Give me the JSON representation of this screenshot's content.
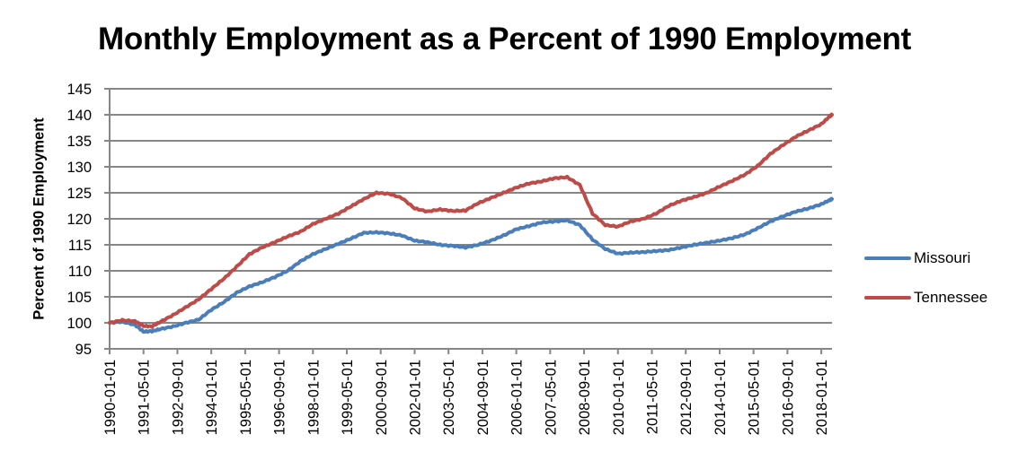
{
  "chart_data": {
    "type": "line",
    "title": "Monthly Employment as a Percent of 1990 Employment",
    "xlabel": "",
    "ylabel": "Percent of 1990 Employment",
    "ylim": [
      95,
      145
    ],
    "yticks": [
      95,
      100,
      105,
      110,
      115,
      120,
      125,
      130,
      135,
      140,
      145
    ],
    "grid": true,
    "legend_position": "right",
    "x_tick_labels": [
      "1990-01-01",
      "1991-05-01",
      "1992-09-01",
      "1994-01-01",
      "1995-05-01",
      "1996-09-01",
      "1998-01-01",
      "1999-05-01",
      "2000-09-01",
      "2002-01-01",
      "2003-05-01",
      "2004-09-01",
      "2006-01-01",
      "2007-05-01",
      "2008-09-01",
      "2010-01-01",
      "2011-05-01",
      "2012-09-01",
      "2014-01-01",
      "2015-05-01",
      "2016-09-01",
      "2018-01-01"
    ],
    "x": [
      1990.0,
      1990.5,
      1991.0,
      1991.33,
      1991.67,
      1992.0,
      1992.5,
      1993.0,
      1993.5,
      1994.0,
      1994.5,
      1995.0,
      1995.5,
      1996.0,
      1996.5,
      1997.0,
      1997.5,
      1998.0,
      1998.5,
      1999.0,
      1999.5,
      2000.0,
      2000.5,
      2001.0,
      2001.5,
      2002.0,
      2002.5,
      2003.0,
      2003.5,
      2004.0,
      2004.5,
      2005.0,
      2005.5,
      2006.0,
      2006.5,
      2007.0,
      2007.5,
      2008.0,
      2008.5,
      2009.0,
      2009.5,
      2010.0,
      2010.5,
      2011.0,
      2011.5,
      2012.0,
      2012.5,
      2013.0,
      2013.5,
      2014.0,
      2014.5,
      2015.0,
      2015.5,
      2016.0,
      2016.5,
      2017.0,
      2017.5,
      2018.0,
      2018.33
    ],
    "series": [
      {
        "name": "Missouri",
        "color": "#4a7ebb",
        "values": [
          100.0,
          100.2,
          99.6,
          98.3,
          98.4,
          98.8,
          99.3,
          100.0,
          100.6,
          102.5,
          104.0,
          105.8,
          107.0,
          107.8,
          108.8,
          110.0,
          111.8,
          113.2,
          114.2,
          115.2,
          116.2,
          117.3,
          117.4,
          117.2,
          116.8,
          115.8,
          115.5,
          115.0,
          114.8,
          114.5,
          115.0,
          115.8,
          116.8,
          118.0,
          118.6,
          119.3,
          119.5,
          119.7,
          118.8,
          116.0,
          114.2,
          113.3,
          113.5,
          113.6,
          113.8,
          114.0,
          114.5,
          115.0,
          115.4,
          115.8,
          116.3,
          117.0,
          118.2,
          119.5,
          120.5,
          121.4,
          122.0,
          122.8,
          123.6
        ],
        "end_value": 123.8
      },
      {
        "name": "Tennessee",
        "color": "#be4b48",
        "values": [
          100.0,
          100.5,
          100.3,
          99.4,
          99.3,
          100.2,
          101.5,
          103.0,
          104.5,
          106.5,
          108.5,
          110.8,
          113.2,
          114.5,
          115.5,
          116.6,
          117.5,
          119.0,
          120.0,
          121.0,
          122.4,
          123.8,
          125.0,
          124.8,
          124.0,
          122.0,
          121.4,
          121.8,
          121.5,
          121.6,
          123.0,
          124.0,
          125.0,
          126.0,
          126.8,
          127.2,
          127.8,
          128.0,
          126.5,
          121.0,
          118.8,
          118.5,
          119.5,
          120.0,
          121.0,
          122.5,
          123.5,
          124.2,
          125.0,
          126.2,
          127.3,
          128.5,
          130.2,
          132.5,
          134.2,
          135.8,
          137.0,
          138.2,
          139.7
        ],
        "end_value": 140.0
      }
    ]
  },
  "legend": {
    "items": [
      {
        "label": "Missouri",
        "color": "#4a7ebb"
      },
      {
        "label": "Tennessee",
        "color": "#be4b48"
      }
    ]
  }
}
